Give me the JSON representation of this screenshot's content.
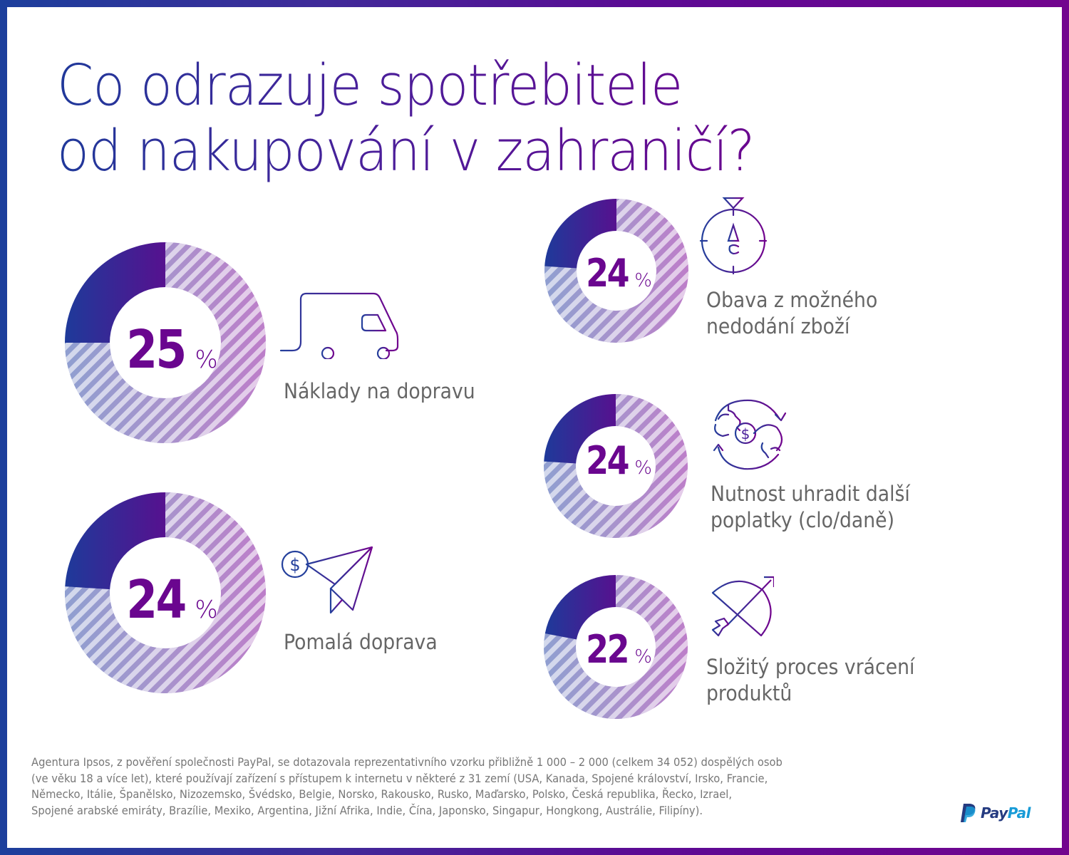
{
  "title": {
    "line1": "Co odrazuje spotřebitele",
    "line2": "od nakupování v zahraničí?"
  },
  "colors": {
    "border_start": "#1c3f9c",
    "border_end": "#72048e",
    "highlight_start": "#1e3a9a",
    "highlight_end": "#56118f",
    "stripe_left": "#8f9fd0",
    "stripe_right": "#b97fca",
    "stripe_light": "#e3d6ee",
    "percent_text": "#6a068f",
    "label_text": "#666666"
  },
  "chart_data": [
    {
      "type": "pie",
      "style": "donut",
      "title": "Náklady na dopravu",
      "value_label": "25",
      "unit": "%",
      "slices": [
        {
          "name": "Náklady na dopravu",
          "value": 25
        },
        {
          "name": "ostatní",
          "value": 75
        }
      ],
      "icon": "delivery-van-icon"
    },
    {
      "type": "pie",
      "style": "donut",
      "title": "Pomalá doprava",
      "value_label": "24",
      "unit": "%",
      "slices": [
        {
          "name": "Pomalá doprava",
          "value": 24
        },
        {
          "name": "ostatní",
          "value": 76
        }
      ],
      "icon": "paper-plane-dollar-icon"
    },
    {
      "type": "pie",
      "style": "donut",
      "title": "Obava z možného nedodání zboží",
      "label_lines": [
        "Obava z možného",
        "nedodání zboží"
      ],
      "value_label": "24",
      "unit": "%",
      "slices": [
        {
          "name": "Obava z možného nedodání zboží",
          "value": 24
        },
        {
          "name": "ostatní",
          "value": 76
        }
      ],
      "icon": "stopwatch-icon"
    },
    {
      "type": "pie",
      "style": "donut",
      "title": "Nutnost uhradit další poplatky (clo/daně)",
      "label_lines": [
        "Nutnost uhradit další",
        "poplatky (clo/daně)"
      ],
      "value_label": "24",
      "unit": "%",
      "slices": [
        {
          "name": "Nutnost uhradit další poplatky (clo/daně)",
          "value": 24
        },
        {
          "name": "ostatní",
          "value": 76
        }
      ],
      "icon": "money-exchange-icon"
    },
    {
      "type": "pie",
      "style": "donut",
      "title": "Složitý proces vrácení produktů",
      "label_lines": [
        "Složitý proces vrácení",
        "produktů"
      ],
      "value_label": "22",
      "unit": "%",
      "slices": [
        {
          "name": "Složitý proces vrácení produktů",
          "value": 22
        },
        {
          "name": "ostatní",
          "value": 78
        }
      ],
      "icon": "bow-arrow-icon"
    }
  ],
  "footnote": "Agentura Ipsos, z pověření společnosti PayPal, se dotazovala reprezentativního vzorku přibližně 1 000 – 2 000 (celkem 34 052) dospělých osob\n(ve věku 18 a více let), které používají zařízení s přístupem k internetu v některé z 31 zemí  (USA, Kanada, Spojené království, Irsko, Francie,\nNěmecko, Itálie, Španělsko, Nizozemsko, Švédsko, Belgie, Norsko, Rakousko, Rusko, Maďarsko, Polsko, Česká republika, Řecko, Izrael,\nSpojené arabské emiráty, Brazílie, Mexiko, Argentina, Jižní Afrika, Indie, Čína, Japonsko, Singapur, Hongkong, Austrálie, Filipíny).",
  "logo": {
    "pay": "Pay",
    "pal": "Pal"
  }
}
